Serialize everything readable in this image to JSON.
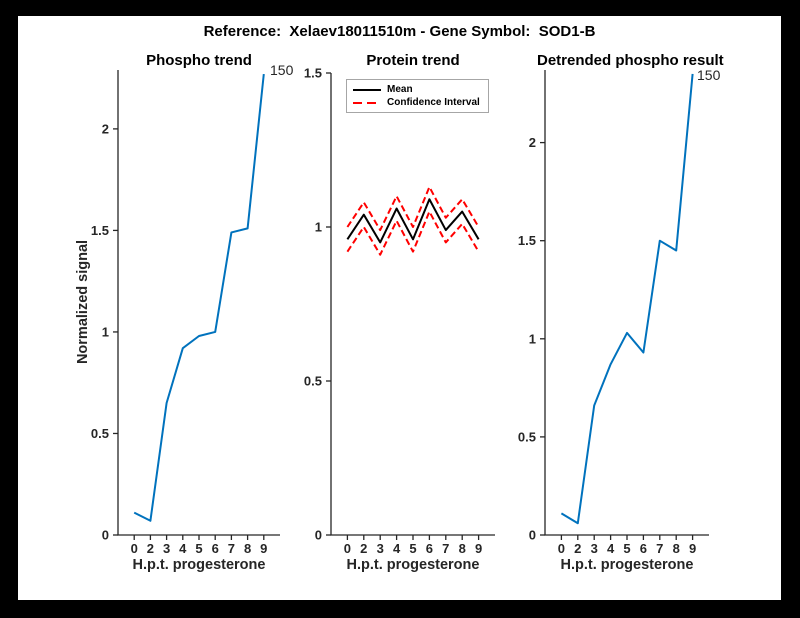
{
  "figure": {
    "title": "Reference:  Xelaev18011510m - Gene Symbol:  SOD1-B",
    "background": "#ffffff",
    "frame_color": "#000000"
  },
  "colors": {
    "axis": "#262626",
    "blue": "#0072BD",
    "red": "#ff0000",
    "black": "#000000",
    "legend_border": "#a6a6a6"
  },
  "chart_data": [
    {
      "type": "line",
      "title": "Phospho trend",
      "xlabel": "H.p.t. progesterone",
      "ylabel": "Normalized signal",
      "categories": [
        0,
        2,
        3,
        4,
        5,
        6,
        7,
        8,
        9
      ],
      "values": [
        0.11,
        0.07,
        0.65,
        0.92,
        0.98,
        1.0,
        1.49,
        1.51,
        2.27
      ],
      "yticks": [
        0,
        0.5,
        1,
        1.5,
        2
      ],
      "ylim": [
        0,
        2.29
      ],
      "annotation": "150",
      "line_color": "#0072BD",
      "grid": false,
      "legend": null
    },
    {
      "type": "line",
      "title": "Protein trend",
      "xlabel": "H.p.t. progesterone",
      "ylabel": "",
      "categories": [
        0,
        2,
        3,
        4,
        5,
        6,
        7,
        8,
        9
      ],
      "series": [
        {
          "name": "Mean",
          "values": [
            0.96,
            1.04,
            0.95,
            1.06,
            0.96,
            1.09,
            0.99,
            1.05,
            0.96
          ],
          "color": "#000000",
          "style": "solid"
        },
        {
          "name": "Confidence Interval",
          "values": [
            1.0,
            1.08,
            0.99,
            1.1,
            1.0,
            1.13,
            1.03,
            1.09,
            1.0
          ],
          "color": "#ff0000",
          "style": "dashed"
        },
        {
          "name": "Confidence Interval",
          "values": [
            0.92,
            1.0,
            0.91,
            1.02,
            0.92,
            1.05,
            0.95,
            1.01,
            0.92
          ],
          "color": "#ff0000",
          "style": "dashed"
        }
      ],
      "yticks": [
        0,
        0.5,
        1,
        1.5
      ],
      "ylim": [
        0,
        1.5
      ],
      "annotation": "",
      "grid": false,
      "legend": {
        "position": "top-left",
        "entries": [
          "Mean",
          "Confidence Interval"
        ]
      }
    },
    {
      "type": "line",
      "title": "Detrended phospho result",
      "xlabel": "H.p.t. progesterone",
      "ylabel": "",
      "categories": [
        0,
        2,
        3,
        4,
        5,
        6,
        7,
        8,
        9
      ],
      "values": [
        0.11,
        0.06,
        0.66,
        0.87,
        1.03,
        0.93,
        1.5,
        1.45,
        2.35
      ],
      "yticks": [
        0,
        0.5,
        1,
        1.5,
        2
      ],
      "ylim": [
        0,
        2.37
      ],
      "annotation": "150",
      "line_color": "#0072BD",
      "grid": false,
      "legend": null
    }
  ]
}
